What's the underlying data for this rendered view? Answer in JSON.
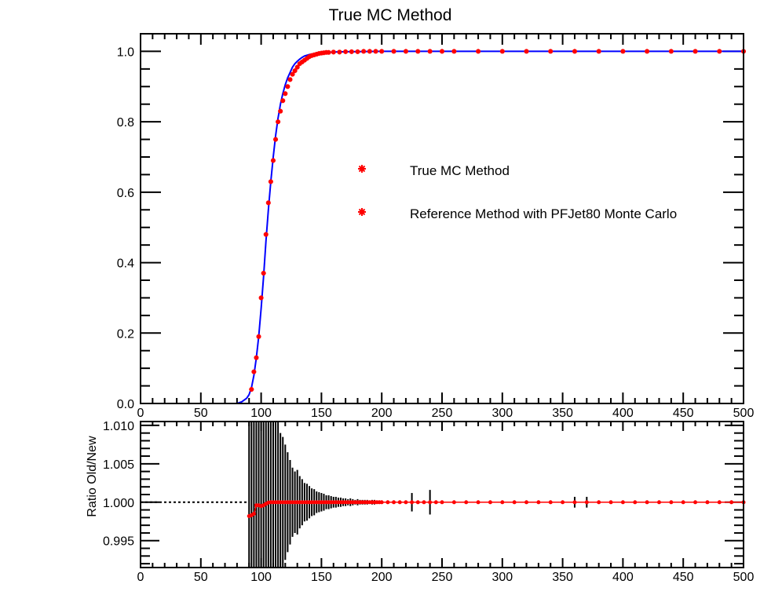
{
  "title": "True MC Method",
  "colors": {
    "data": "#ff0000",
    "fit": "#0000ff",
    "axis": "#000000"
  },
  "legend": [
    {
      "label": "True MC Method",
      "marker": "red-star"
    },
    {
      "label": "Reference Method with PFJet80 Monte Carlo",
      "marker": "red-star"
    }
  ],
  "chart_data": [
    {
      "type": "scatter",
      "panel": "top",
      "title": "True MC Method",
      "xlim": [
        0,
        500
      ],
      "ylim": [
        0,
        1.05
      ],
      "xticks": [
        0,
        50,
        100,
        150,
        200,
        250,
        300,
        350,
        400,
        450,
        500
      ],
      "yticks": [
        0.0,
        0.2,
        0.4,
        0.6,
        0.8,
        1.0
      ],
      "xtick_labels": [
        "0",
        "50",
        "100",
        "150",
        "200",
        "250",
        "300",
        "350",
        "400",
        "450",
        "500"
      ],
      "ytick_labels": [
        "0.0",
        "0.2",
        "0.4",
        "0.6",
        "0.8",
        "1.0"
      ],
      "series": [
        {
          "name": "True MC Method",
          "kind": "points",
          "x": [
            92,
            94,
            96,
            98,
            100,
            102,
            104,
            106,
            108,
            110,
            112,
            114,
            116,
            118,
            120,
            122,
            124,
            126,
            128,
            130,
            132,
            134,
            136,
            138,
            140,
            142,
            144,
            146,
            148,
            150,
            152,
            154,
            156,
            160,
            165,
            170,
            175,
            180,
            185,
            190,
            195,
            200,
            210,
            220,
            230,
            240,
            250,
            260,
            280,
            300,
            320,
            340,
            360,
            380,
            400,
            420,
            440,
            460,
            480,
            500
          ],
          "y": [
            0.04,
            0.09,
            0.13,
            0.19,
            0.3,
            0.37,
            0.48,
            0.57,
            0.63,
            0.69,
            0.75,
            0.8,
            0.83,
            0.86,
            0.88,
            0.9,
            0.92,
            0.935,
            0.945,
            0.955,
            0.965,
            0.97,
            0.975,
            0.98,
            0.985,
            0.988,
            0.99,
            0.992,
            0.994,
            0.995,
            0.996,
            0.997,
            0.997,
            0.998,
            0.998,
            0.999,
            0.999,
            0.999,
            1.0,
            1.0,
            1.0,
            1.0,
            1.0,
            1.0,
            1.0,
            1.0,
            1.0,
            1.0,
            1.0,
            1.0,
            1.0,
            1.0,
            1.0,
            1.0,
            1.0,
            1.0,
            1.0,
            1.0,
            1.0,
            1.0
          ]
        },
        {
          "name": "Reference Method with PFJet80 Monte Carlo",
          "kind": "line",
          "x": [
            0,
            80,
            84,
            88,
            90,
            92,
            94,
            96,
            98,
            100,
            102,
            104,
            106,
            108,
            110,
            112,
            114,
            116,
            118,
            120,
            122,
            124,
            126,
            128,
            130,
            132,
            134,
            136,
            140,
            145,
            150,
            155,
            160,
            170,
            180,
            200,
            250,
            300,
            350,
            400,
            450,
            500
          ],
          "y": [
            0,
            0,
            0.005,
            0.015,
            0.025,
            0.045,
            0.08,
            0.13,
            0.19,
            0.27,
            0.36,
            0.46,
            0.55,
            0.63,
            0.7,
            0.76,
            0.81,
            0.85,
            0.88,
            0.905,
            0.925,
            0.94,
            0.955,
            0.965,
            0.972,
            0.978,
            0.983,
            0.987,
            0.991,
            0.994,
            0.996,
            0.997,
            0.998,
            0.999,
            0.9995,
            1.0,
            1.0,
            1.0,
            1.0,
            1.0,
            1.0,
            1.0
          ]
        }
      ]
    },
    {
      "type": "scatter",
      "panel": "bottom",
      "ylabel": "Ratio Old/New",
      "xlim": [
        0,
        500
      ],
      "ylim": [
        0.9915,
        1.0105
      ],
      "reference_y": 1.0,
      "xticks": [
        0,
        50,
        100,
        150,
        200,
        250,
        300,
        350,
        400,
        450,
        500
      ],
      "yticks": [
        0.995,
        1.0,
        1.005,
        1.01
      ],
      "xtick_labels": [
        "0",
        "50",
        "100",
        "150",
        "200",
        "250",
        "300",
        "350",
        "400",
        "450",
        "500"
      ],
      "ytick_labels": [
        "0.995",
        "1.000",
        "1.005",
        "1.010"
      ],
      "series": [
        {
          "name": "",
          "x": [
            90,
            92,
            94,
            96,
            98,
            100,
            102,
            104,
            106,
            108,
            110,
            112,
            114,
            116,
            118,
            120,
            122,
            124,
            126,
            128,
            130,
            132,
            134,
            136,
            138,
            140,
            142,
            144,
            146,
            148,
            150,
            152,
            154,
            156,
            158,
            160,
            162,
            164,
            166,
            168,
            170,
            172,
            174,
            176,
            178,
            180,
            182,
            184,
            186,
            188,
            190,
            192,
            194,
            196,
            198,
            200,
            205,
            210,
            215,
            220,
            225,
            230,
            235,
            240,
            245,
            250,
            260,
            270,
            280,
            290,
            300,
            310,
            320,
            330,
            340,
            350,
            360,
            370,
            380,
            390,
            400,
            410,
            420,
            430,
            440,
            450,
            460,
            470,
            480,
            490,
            500
          ],
          "y": [
            0.9982,
            0.9983,
            0.9985,
            0.9996,
            0.9996,
            0.9995,
            0.9996,
            0.9998,
            0.99995,
            1.0,
            1.0,
            1.0,
            1.0,
            1.0,
            1.0,
            1.0,
            1.0,
            1.0,
            1.0,
            1.0,
            1.0,
            1.0,
            1.0,
            1.0,
            1.0,
            1.0,
            1.0,
            1.0,
            1.0,
            1.0,
            1.0,
            1.0,
            1.0,
            1.0,
            1.0,
            1.0,
            1.0,
            1.0,
            1.0,
            1.0,
            1.0,
            1.0,
            1.0,
            1.0,
            1.0,
            1.0,
            1.0,
            1.0,
            1.0,
            1.0,
            1.0,
            1.0,
            1.0,
            1.0,
            1.0,
            1.0,
            1.0,
            1.0,
            1.0,
            1.0,
            1.0,
            1.0,
            1.0,
            1.0,
            1.0,
            1.0,
            1.0,
            1.0,
            1.0,
            1.0,
            1.0,
            1.0,
            1.0,
            1.0,
            1.0,
            1.0,
            1.0,
            1.0,
            1.0,
            1.0,
            1.0,
            1.0,
            1.0,
            1.0,
            1.0,
            1.0,
            1.0,
            1.0,
            1.0,
            1.0,
            1.0
          ],
          "yerr": [
            0.03,
            0.03,
            0.03,
            0.03,
            0.03,
            0.03,
            0.03,
            0.03,
            0.03,
            0.03,
            0.03,
            0.03,
            0.03,
            0.009,
            0.0085,
            0.0075,
            0.0065,
            0.0055,
            0.0045,
            0.004,
            0.0042,
            0.0034,
            0.003,
            0.0025,
            0.0024,
            0.0021,
            0.0018,
            0.0017,
            0.0014,
            0.0013,
            0.0012,
            0.0011,
            0.0009,
            0.0009,
            0.0008,
            0.0007,
            0.0007,
            0.0006,
            0.0006,
            0.0005,
            0.0005,
            0.0004,
            0.0005,
            0.0004,
            0.0003,
            0.0004,
            0.0003,
            0.0003,
            0.0003,
            0.0003,
            0.0002,
            0.0003,
            0.0003,
            0.0002,
            0.0002,
            0.0002,
            0.0002,
            0.0002,
            0.0002,
            0.0002,
            0.0012,
            0.0002,
            0.0002,
            0.0016,
            0.0002,
            0.0002,
            0.0002,
            0.0002,
            0.0002,
            0.0002,
            0.0002,
            0.0002,
            0.0002,
            0.0002,
            0.0002,
            0.0002,
            0.0007,
            0.0007,
            0.0002,
            0.0002,
            0.0002,
            0.0002,
            0.0002,
            0.0002,
            0.0002,
            0.0002,
            0.0002,
            0.0002,
            0.0002,
            0.0002,
            0.0002
          ]
        }
      ]
    }
  ]
}
